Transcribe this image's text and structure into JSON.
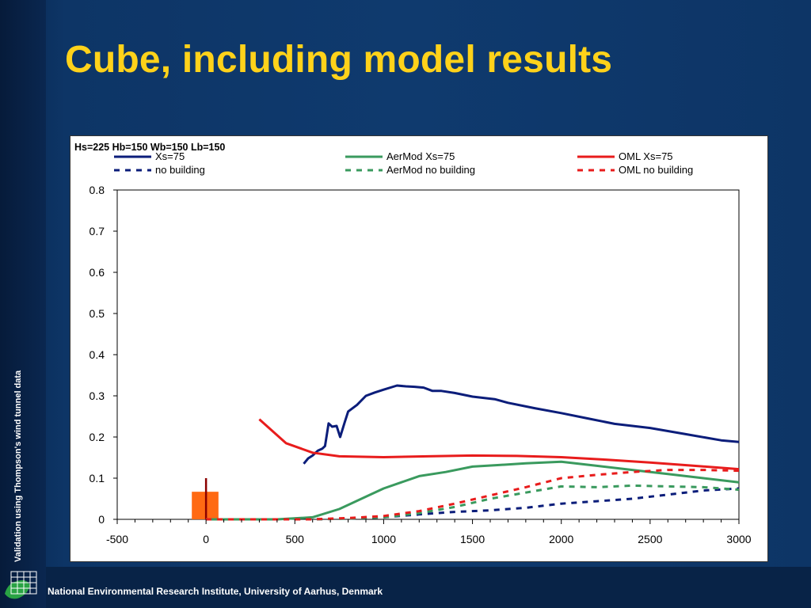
{
  "slide": {
    "title": "Cube, including model results",
    "side_text": "Validation using Thompson's wind tunnel data",
    "footer": "National Environmental Research Institute, University of Aarhus, Denmark"
  },
  "chart_data": {
    "type": "line",
    "title": "Hs=225 Hb=150 Wb=150 Lb=150",
    "xlabel": "",
    "ylabel": "",
    "xlim": [
      -500,
      3000
    ],
    "ylim": [
      0,
      0.8
    ],
    "x_ticks": [
      -500,
      0,
      500,
      1000,
      1500,
      2000,
      2500,
      3000
    ],
    "y_ticks": [
      0,
      0.1,
      0.2,
      0.3,
      0.4,
      0.5,
      0.6,
      0.7,
      0.8
    ],
    "x_tick_labels": [
      "-500",
      "0",
      "500",
      "1000",
      "1500",
      "2000",
      "2500",
      "3000"
    ],
    "y_tick_labels": [
      "0",
      "0.1",
      "0.2",
      "0.3",
      "0.4",
      "0.5",
      "0.6",
      "0.7",
      "0.8"
    ],
    "grid": false,
    "legend_position": "top",
    "series": [
      {
        "name": "Xs=75",
        "color": "#0b1d7a",
        "dash": "solid",
        "x": [
          550,
          575,
          600,
          630,
          655,
          670,
          690,
          710,
          735,
          755,
          780,
          800,
          850,
          900,
          950,
          1000,
          1075,
          1125,
          1175,
          1225,
          1275,
          1325,
          1400,
          1500,
          1625,
          1700,
          1850,
          2000,
          2150,
          2300,
          2500,
          2700,
          2900,
          3000
        ],
        "y": [
          0.135,
          0.148,
          0.155,
          0.167,
          0.172,
          0.178,
          0.233,
          0.225,
          0.227,
          0.2,
          0.235,
          0.262,
          0.278,
          0.3,
          0.308,
          0.315,
          0.325,
          0.323,
          0.322,
          0.32,
          0.312,
          0.312,
          0.307,
          0.298,
          0.292,
          0.283,
          0.27,
          0.258,
          0.245,
          0.232,
          0.222,
          0.207,
          0.192,
          0.188
        ]
      },
      {
        "name": "no building",
        "color": "#0b1d7a",
        "dash": "dashed",
        "x": [
          0,
          200,
          400,
          600,
          800,
          1000,
          1200,
          1400,
          1600,
          1800,
          2000,
          2200,
          2400,
          2600,
          2800,
          3000
        ],
        "y": [
          0,
          0,
          0,
          0,
          0.002,
          0.005,
          0.012,
          0.018,
          0.022,
          0.028,
          0.038,
          0.044,
          0.05,
          0.06,
          0.07,
          0.075
        ]
      },
      {
        "name": "AerMod Xs=75",
        "color": "#3a9a5e",
        "dash": "solid",
        "x": [
          0,
          200,
          400,
          600,
          750,
          900,
          1000,
          1100,
          1200,
          1350,
          1500,
          1650,
          1800,
          2000,
          2200,
          2400,
          2600,
          2800,
          3000
        ],
        "y": [
          0,
          0,
          0,
          0.005,
          0.025,
          0.055,
          0.075,
          0.09,
          0.105,
          0.115,
          0.128,
          0.132,
          0.136,
          0.14,
          0.13,
          0.12,
          0.11,
          0.1,
          0.09
        ]
      },
      {
        "name": "AerMod no building",
        "color": "#3a9a5e",
        "dash": "dashed",
        "x": [
          0,
          200,
          400,
          600,
          800,
          1000,
          1200,
          1400,
          1600,
          1800,
          2000,
          2200,
          2400,
          2600,
          2800,
          3000
        ],
        "y": [
          0,
          0,
          0,
          0,
          0.002,
          0.005,
          0.015,
          0.03,
          0.05,
          0.065,
          0.08,
          0.078,
          0.082,
          0.08,
          0.078,
          0.072
        ]
      },
      {
        "name": "OML Xs=75",
        "color": "#e81c1c",
        "dash": "solid",
        "x": [
          300,
          450,
          600,
          750,
          1000,
          1250,
          1500,
          1750,
          2000,
          2250,
          2500,
          2750,
          3000
        ],
        "y": [
          0.243,
          0.185,
          0.162,
          0.153,
          0.151,
          0.153,
          0.155,
          0.154,
          0.151,
          0.145,
          0.138,
          0.13,
          0.122
        ]
      },
      {
        "name": "OML no building",
        "color": "#e81c1c",
        "dash": "dashed",
        "x": [
          0,
          200,
          400,
          600,
          800,
          1000,
          1200,
          1400,
          1600,
          1800,
          2000,
          2200,
          2400,
          2600,
          2800,
          3000
        ],
        "y": [
          0,
          0,
          0,
          0,
          0.003,
          0.008,
          0.02,
          0.038,
          0.058,
          0.078,
          0.1,
          0.108,
          0.115,
          0.12,
          0.12,
          0.118
        ]
      }
    ],
    "annotations": [
      {
        "kind": "building-rect",
        "color": "#ff6a13",
        "x_range": [
          -80,
          70
        ],
        "y_range": [
          0,
          0.067
        ]
      },
      {
        "kind": "source-stack-line",
        "color": "#8b0000",
        "x": 0,
        "y_range": [
          0,
          0.1
        ]
      }
    ]
  }
}
